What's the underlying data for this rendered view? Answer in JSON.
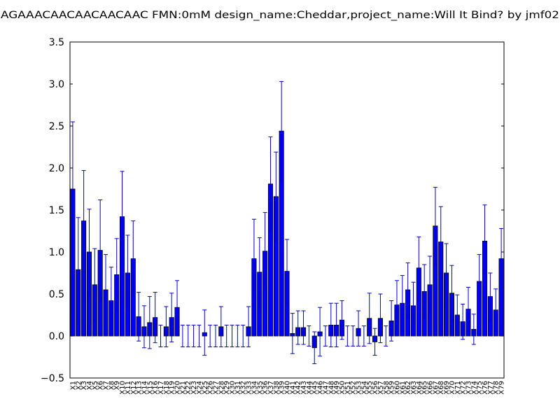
{
  "chart_data": {
    "type": "bar",
    "title": "AGAAACAACAACAACAAC  FMN:0mM  design_name:Cheddar,project_name:Will It Bind? by jmf02",
    "categories": [
      "X1",
      "X2",
      "X3",
      "X4",
      "X5",
      "X6",
      "X7",
      "X8",
      "X9",
      "X10",
      "X11",
      "X12",
      "X13",
      "X14",
      "X15",
      "X16",
      "X17",
      "X18",
      "X19",
      "X20",
      "X21",
      "X22",
      "X23",
      "X24",
      "X25",
      "X26",
      "X27",
      "X28",
      "X29",
      "X30",
      "X31",
      "X32",
      "X33",
      "X34",
      "X35",
      "X36",
      "X37",
      "X38",
      "X39",
      "X40",
      "X41",
      "X42",
      "X43",
      "X44",
      "X45",
      "X46",
      "X47",
      "X48",
      "X49",
      "X50",
      "X51",
      "X52",
      "X53",
      "X54",
      "X55",
      "X56",
      "X57",
      "X58",
      "X59",
      "X60",
      "X61",
      "X62",
      "X63",
      "X64",
      "X65",
      "X66",
      "X67",
      "X68",
      "X69",
      "X70",
      "X71",
      "X72",
      "X73",
      "X74",
      "X75",
      "X76",
      "X77",
      "X78",
      "X79"
    ],
    "values": [
      1.75,
      0.79,
      1.37,
      1.0,
      0.61,
      1.02,
      0.55,
      0.42,
      0.73,
      1.42,
      0.75,
      0.92,
      0.23,
      0.11,
      0.16,
      0.22,
      0,
      0.11,
      0.22,
      0.34,
      0,
      0,
      0,
      0,
      0.04,
      0,
      0,
      0.11,
      0,
      0,
      0,
      0,
      0.11,
      0.92,
      0.76,
      1.01,
      1.81,
      1.66,
      2.44,
      0.77,
      0.03,
      0.1,
      0.1,
      0,
      -0.14,
      0.05,
      0,
      0.13,
      0.13,
      0.19,
      0,
      0,
      0.09,
      0,
      0.21,
      -0.07,
      0.21,
      0,
      0.18,
      0.37,
      0.39,
      0.55,
      0.36,
      0.81,
      0.53,
      0.61,
      1.31,
      1.12,
      0.75,
      0.51,
      0.25,
      0.17,
      0.32,
      0.08,
      0.65,
      1.13,
      0.47,
      0.31,
      0.92
    ],
    "errors": [
      0.8,
      0.62,
      0.6,
      0.51,
      0.43,
      0.6,
      0.42,
      0.4,
      0.43,
      0.54,
      0.45,
      0.45,
      0.29,
      0.25,
      0.31,
      0.3,
      0.13,
      0.24,
      0.29,
      0.32,
      0.13,
      0.13,
      0.13,
      0.13,
      0.27,
      0.13,
      0.13,
      0.24,
      0.13,
      0.13,
      0.13,
      0.13,
      0.24,
      0.47,
      0.41,
      0.46,
      0.56,
      0.53,
      0.59,
      0.38,
      0.24,
      0.2,
      0.2,
      0.12,
      0.19,
      0.29,
      0.12,
      0.26,
      0.26,
      0.23,
      0.12,
      0.12,
      0.21,
      0.12,
      0.3,
      0.16,
      0.29,
      0.12,
      0.24,
      0.29,
      0.33,
      0.32,
      0.28,
      0.37,
      0.32,
      0.34,
      0.46,
      0.42,
      0.35,
      0.33,
      0.24,
      0.21,
      0.26,
      0.18,
      0.32,
      0.43,
      0.28,
      0.25,
      0.36
    ],
    "color": "#0000ff",
    "error_color": "#0000cc",
    "ylim": [
      -0.5,
      3.5
    ],
    "yticks": [
      {
        "value": -0.5,
        "label": "−0.5"
      },
      {
        "value": 0,
        "label": "0.0"
      },
      {
        "value": 0.5,
        "label": "0.5"
      },
      {
        "value": 1,
        "label": "1.0"
      },
      {
        "value": 1.5,
        "label": "1.5"
      },
      {
        "value": 2,
        "label": "2.0"
      },
      {
        "value": 2.5,
        "label": "2.5"
      },
      {
        "value": 3,
        "label": "3.0"
      },
      {
        "value": 3.5,
        "label": "3.5"
      }
    ],
    "grid": false
  }
}
